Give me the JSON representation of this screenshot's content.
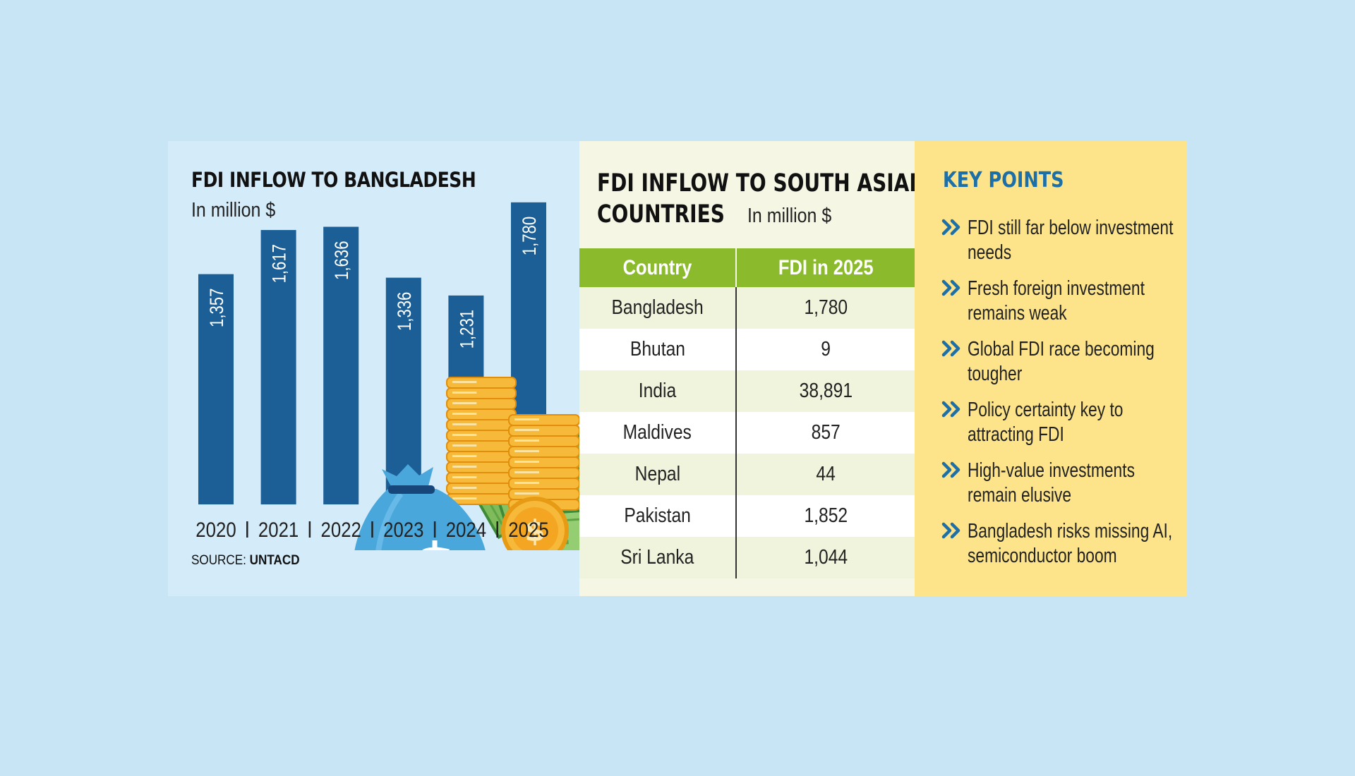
{
  "chart_panel": {
    "title": "FDI INFLOW TO BANGLADESH",
    "subtitle": "In million $",
    "source_prefix": "SOURCE:",
    "source_name": "UNTACD"
  },
  "chart_data": {
    "type": "bar",
    "title": "FDI INFLOW TO BANGLADESH",
    "subtitle": "In million $",
    "categories": [
      "2020",
      "2021",
      "2022",
      "2023",
      "2024",
      "2025"
    ],
    "values": [
      1357,
      1617,
      1636,
      1336,
      1231,
      1780
    ],
    "value_labels": [
      "1,357",
      "1,617",
      "1,636",
      "1,336",
      "1,231",
      "1,780"
    ],
    "bar_color": "#1b5f96",
    "ylim": [
      0,
      1850
    ],
    "grid": false
  },
  "table_panel": {
    "title_line1": "FDI INFLOW TO SOUTH ASIAN",
    "title_line2": "COUNTRIES",
    "unit": "In million $",
    "columns": [
      "Country",
      "FDI in 2025"
    ],
    "rows": [
      [
        "Bangladesh",
        "1,780"
      ],
      [
        "Bhutan",
        "9"
      ],
      [
        "India",
        "38,891"
      ],
      [
        "Maldives",
        "857"
      ],
      [
        "Nepal",
        "44"
      ],
      [
        "Pakistan",
        "1,852"
      ],
      [
        "Sri Lanka",
        "1,044"
      ]
    ],
    "header_color": "#8bbb2d"
  },
  "key_points": {
    "title": "KEY POINTS",
    "icon": "double-chevron-right-icon",
    "items": [
      "FDI still far below investment needs",
      "Fresh foreign investment remains weak",
      "Global FDI race becoming tougher",
      "Policy certainty key to attracting FDI",
      "High-value investments remain elusive",
      "Bangladesh risks missing AI, semiconductor boom"
    ],
    "accent_color": "#1d6fa8"
  }
}
